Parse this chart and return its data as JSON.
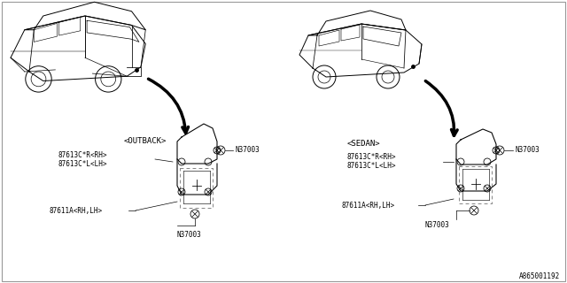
{
  "bg_color": "#ffffff",
  "line_color": "#000000",
  "dc": "#666666",
  "title_label": "A865001192",
  "outback_label": "<OUTBACK>",
  "sedan_label": "<SEDAN>",
  "label_87613_R": "87613C*R<RH>",
  "label_87613_L": "87613C*L<LH>",
  "label_87611": "87611A<RH,LH>",
  "label_N37003": "N37003",
  "font_size_label": 5.5,
  "font_size_title": 5.5,
  "font_size_car_label": 6.5
}
